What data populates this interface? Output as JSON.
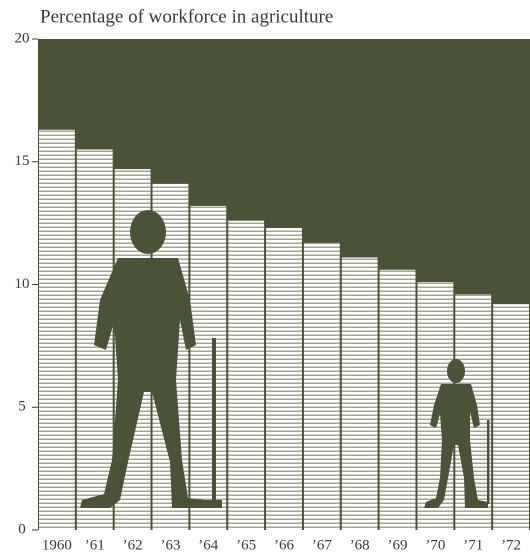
{
  "chart_data": {
    "type": "bar",
    "title": "Percentage of workforce in agriculture",
    "categories": [
      "1960",
      "’61",
      "’62",
      "’63",
      "’64",
      "’65",
      "’66",
      "’67",
      "’68",
      "’69",
      "’70",
      "’71",
      "’72"
    ],
    "values": [
      16.3,
      15.5,
      14.7,
      14.1,
      13.2,
      12.6,
      12.3,
      11.7,
      11.1,
      10.6,
      10.1,
      9.6,
      9.2
    ],
    "color": "#8e917b",
    "plot_background": "#4b5337",
    "ylim": [
      0,
      20
    ],
    "yticks": [
      0,
      5,
      10,
      15,
      20
    ]
  }
}
